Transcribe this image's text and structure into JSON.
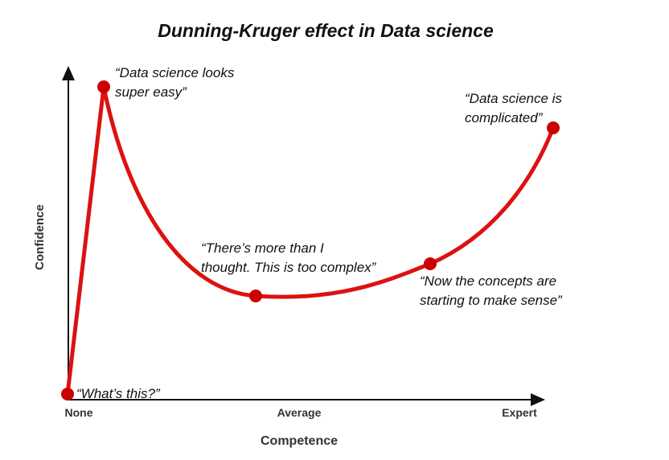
{
  "title": "Dunning-Kruger effect in Data science",
  "x_axis": {
    "label": "Competence",
    "ticks": [
      "None",
      "Average",
      "Expert"
    ]
  },
  "y_axis": {
    "label": "Confidence"
  },
  "annotations": [
    {
      "lines": [
        "“What’s this?”"
      ]
    },
    {
      "lines": [
        "“Data science looks",
        "super easy”"
      ]
    },
    {
      "lines": [
        "“There’s more than I",
        "thought. This is too complex”"
      ]
    },
    {
      "lines": [
        "“Now the concepts are",
        "starting to make sense”"
      ]
    },
    {
      "lines": [
        "“Data science is",
        "complicated”"
      ]
    }
  ]
}
